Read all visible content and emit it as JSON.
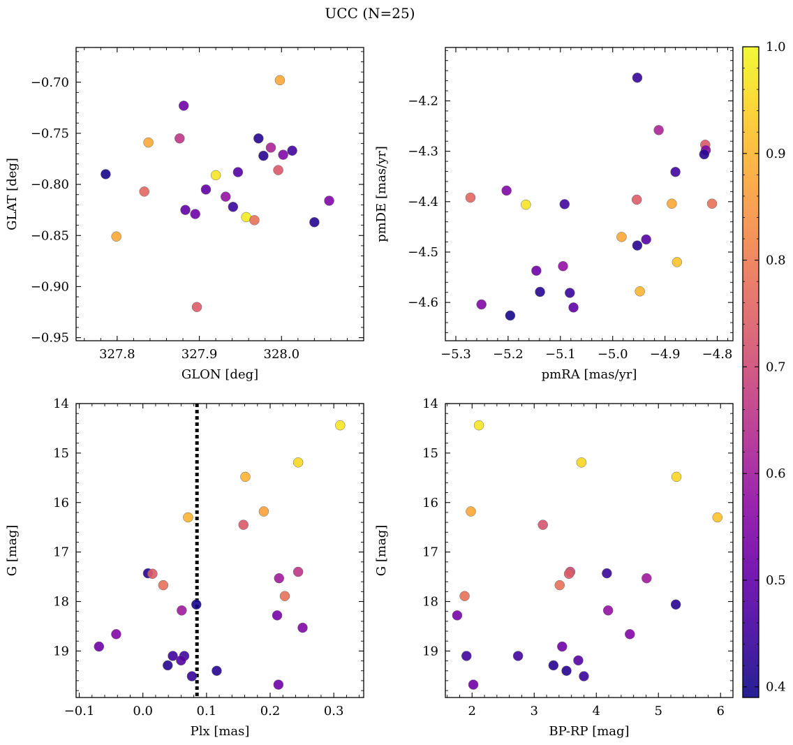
{
  "figure_title": "UCC (N=25)",
  "colormap": {
    "name": "plasma",
    "range": [
      0.39,
      1.0
    ],
    "ticks": [
      0.4,
      0.5,
      0.6,
      0.7,
      0.8,
      0.9,
      1.0
    ],
    "tick_labels": [
      "0.4",
      "0.5",
      "0.6",
      "0.7",
      "0.8",
      "0.9",
      "1.0"
    ]
  },
  "chart_data": [
    {
      "type": "scatter",
      "title": "",
      "xlabel": "GLON [deg]",
      "ylabel": "GLAT [deg]",
      "xlim": [
        327.75,
        328.1
      ],
      "ylim": [
        -0.953,
        -0.666
      ],
      "xticks": [
        327.8,
        327.9,
        328.0
      ],
      "xtick_labels": [
        "327.8",
        "327.9",
        "328.0"
      ],
      "yticks": [
        -0.7,
        -0.75,
        -0.8,
        -0.85,
        -0.9,
        -0.95
      ],
      "ytick_labels": [
        "−0.70",
        "−0.75",
        "−0.80",
        "−0.85",
        "−0.90",
        "−0.95"
      ],
      "invert_y": false,
      "points": [
        {
          "x": 327.998,
          "y": -0.698,
          "c": 0.88
        },
        {
          "x": 327.881,
          "y": -0.723,
          "c": 0.52
        },
        {
          "x": 327.838,
          "y": -0.759,
          "c": 0.88
        },
        {
          "x": 327.876,
          "y": -0.755,
          "c": 0.66
        },
        {
          "x": 327.972,
          "y": -0.755,
          "c": 0.42
        },
        {
          "x": 327.786,
          "y": -0.79,
          "c": 0.4
        },
        {
          "x": 327.92,
          "y": -0.791,
          "c": 0.97
        },
        {
          "x": 327.978,
          "y": -0.772,
          "c": 0.42
        },
        {
          "x": 327.987,
          "y": -0.764,
          "c": 0.62
        },
        {
          "x": 328.002,
          "y": -0.771,
          "c": 0.55
        },
        {
          "x": 328.013,
          "y": -0.767,
          "c": 0.45
        },
        {
          "x": 327.947,
          "y": -0.788,
          "c": 0.48
        },
        {
          "x": 327.996,
          "y": -0.786,
          "c": 0.73
        },
        {
          "x": 327.833,
          "y": -0.807,
          "c": 0.76
        },
        {
          "x": 327.908,
          "y": -0.805,
          "c": 0.5
        },
        {
          "x": 327.932,
          "y": -0.812,
          "c": 0.58
        },
        {
          "x": 327.941,
          "y": -0.822,
          "c": 0.44
        },
        {
          "x": 327.883,
          "y": -0.825,
          "c": 0.5
        },
        {
          "x": 327.895,
          "y": -0.829,
          "c": 0.52
        },
        {
          "x": 327.957,
          "y": -0.832,
          "c": 0.98
        },
        {
          "x": 327.967,
          "y": -0.835,
          "c": 0.78
        },
        {
          "x": 328.04,
          "y": -0.837,
          "c": 0.42
        },
        {
          "x": 328.058,
          "y": -0.816,
          "c": 0.55
        },
        {
          "x": 327.799,
          "y": -0.851,
          "c": 0.88
        },
        {
          "x": 327.897,
          "y": -0.92,
          "c": 0.74
        }
      ]
    },
    {
      "type": "scatter",
      "title": "",
      "xlabel": "pmRA [mas/yr]",
      "ylabel": "pmDE [mas/yr]",
      "xlim": [
        -5.32,
        -4.77
      ],
      "ylim": [
        -4.676,
        -4.094
      ],
      "xticks": [
        -5.3,
        -5.2,
        -5.1,
        -5.0,
        -4.9,
        -4.8
      ],
      "xtick_labels": [
        "−5.3",
        "−5.2",
        "−5.1",
        "−5.0",
        "−4.9",
        "−4.8"
      ],
      "yticks": [
        -4.2,
        -4.3,
        -4.4,
        -4.5,
        -4.6
      ],
      "ytick_labels": [
        "−4.2",
        "−4.3",
        "−4.4",
        "−4.5",
        "−4.6"
      ],
      "invert_y": false,
      "points": [
        {
          "x": -4.953,
          "y": -4.154,
          "c": 0.44
        },
        {
          "x": -4.912,
          "y": -4.258,
          "c": 0.62
        },
        {
          "x": -4.823,
          "y": -4.287,
          "c": 0.73
        },
        {
          "x": -4.822,
          "y": -4.298,
          "c": 0.55
        },
        {
          "x": -4.825,
          "y": -4.306,
          "c": 0.42
        },
        {
          "x": -4.88,
          "y": -4.341,
          "c": 0.45
        },
        {
          "x": -5.203,
          "y": -4.378,
          "c": 0.55
        },
        {
          "x": -5.272,
          "y": -4.392,
          "c": 0.76
        },
        {
          "x": -4.954,
          "y": -4.396,
          "c": 0.74
        },
        {
          "x": -4.887,
          "y": -4.404,
          "c": 0.88
        },
        {
          "x": -4.81,
          "y": -4.404,
          "c": 0.78
        },
        {
          "x": -5.166,
          "y": -4.406,
          "c": 0.97
        },
        {
          "x": -5.092,
          "y": -4.405,
          "c": 0.45
        },
        {
          "x": -4.983,
          "y": -4.47,
          "c": 0.88
        },
        {
          "x": -4.936,
          "y": -4.475,
          "c": 0.48
        },
        {
          "x": -4.953,
          "y": -4.487,
          "c": 0.42
        },
        {
          "x": -4.877,
          "y": -4.52,
          "c": 0.92
        },
        {
          "x": -5.095,
          "y": -4.528,
          "c": 0.58
        },
        {
          "x": -5.146,
          "y": -4.537,
          "c": 0.52
        },
        {
          "x": -5.139,
          "y": -4.579,
          "c": 0.42
        },
        {
          "x": -5.082,
          "y": -4.581,
          "c": 0.44
        },
        {
          "x": -4.948,
          "y": -4.578,
          "c": 0.9
        },
        {
          "x": -5.251,
          "y": -4.604,
          "c": 0.55
        },
        {
          "x": -5.075,
          "y": -4.61,
          "c": 0.5
        },
        {
          "x": -5.196,
          "y": -4.626,
          "c": 0.4
        }
      ]
    },
    {
      "type": "scatter",
      "title": "",
      "xlabel": "Plx [mas]",
      "ylabel": "G [mag]",
      "xlim": [
        -0.105,
        0.347
      ],
      "ylim": [
        14.0,
        19.94
      ],
      "xticks": [
        -0.1,
        0.0,
        0.1,
        0.2,
        0.3
      ],
      "xtick_labels": [
        "−0.1",
        "0.0",
        "0.1",
        "0.2",
        "0.3"
      ],
      "yticks": [
        14,
        15,
        16,
        17,
        18,
        19
      ],
      "ytick_labels": [
        "14",
        "15",
        "16",
        "17",
        "18",
        "19"
      ],
      "invert_y": true,
      "reference_line": {
        "x": 0.085,
        "style": "dotted"
      },
      "points": [
        {
          "x": 0.31,
          "y": 14.44,
          "c": 0.97
        },
        {
          "x": 0.244,
          "y": 15.19,
          "c": 0.95
        },
        {
          "x": 0.161,
          "y": 15.48,
          "c": 0.9
        },
        {
          "x": 0.071,
          "y": 16.3,
          "c": 0.9
        },
        {
          "x": 0.19,
          "y": 16.18,
          "c": 0.87
        },
        {
          "x": 0.158,
          "y": 16.45,
          "c": 0.73
        },
        {
          "x": 0.008,
          "y": 17.43,
          "c": 0.42
        },
        {
          "x": 0.015,
          "y": 17.44,
          "c": 0.74
        },
        {
          "x": 0.032,
          "y": 17.67,
          "c": 0.78
        },
        {
          "x": 0.214,
          "y": 17.53,
          "c": 0.6
        },
        {
          "x": 0.244,
          "y": 17.4,
          "c": 0.66
        },
        {
          "x": 0.223,
          "y": 17.89,
          "c": 0.78
        },
        {
          "x": 0.061,
          "y": 18.18,
          "c": 0.6
        },
        {
          "x": 0.084,
          "y": 18.06,
          "c": 0.4
        },
        {
          "x": 0.211,
          "y": 18.28,
          "c": 0.53
        },
        {
          "x": 0.251,
          "y": 18.53,
          "c": 0.55
        },
        {
          "x": -0.042,
          "y": 18.66,
          "c": 0.55
        },
        {
          "x": -0.069,
          "y": 18.91,
          "c": 0.52
        },
        {
          "x": 0.047,
          "y": 19.1,
          "c": 0.45
        },
        {
          "x": 0.065,
          "y": 19.1,
          "c": 0.45
        },
        {
          "x": 0.06,
          "y": 19.19,
          "c": 0.48
        },
        {
          "x": 0.039,
          "y": 19.29,
          "c": 0.42
        },
        {
          "x": 0.116,
          "y": 19.4,
          "c": 0.42
        },
        {
          "x": 0.077,
          "y": 19.51,
          "c": 0.44
        },
        {
          "x": 0.213,
          "y": 19.68,
          "c": 0.52
        }
      ]
    },
    {
      "type": "scatter",
      "title": "",
      "xlabel": "BP-RP [mag]",
      "ylabel": "G [mag]",
      "xlim": [
        1.57,
        6.2
      ],
      "ylim": [
        14.0,
        19.94
      ],
      "xticks": [
        2,
        3,
        4,
        5,
        6
      ],
      "xtick_labels": [
        "2",
        "3",
        "4",
        "5",
        "6"
      ],
      "yticks": [
        14,
        15,
        16,
        17,
        18,
        19
      ],
      "ytick_labels": [
        "14",
        "15",
        "16",
        "17",
        "18",
        "19"
      ],
      "invert_y": true,
      "points": [
        {
          "x": 2.11,
          "y": 14.44,
          "c": 0.97
        },
        {
          "x": 3.76,
          "y": 15.19,
          "c": 0.95
        },
        {
          "x": 5.29,
          "y": 15.48,
          "c": 0.95
        },
        {
          "x": 1.98,
          "y": 16.18,
          "c": 0.88
        },
        {
          "x": 5.95,
          "y": 16.3,
          "c": 0.92
        },
        {
          "x": 3.14,
          "y": 16.45,
          "c": 0.72
        },
        {
          "x": 3.58,
          "y": 17.4,
          "c": 0.7
        },
        {
          "x": 3.56,
          "y": 17.44,
          "c": 0.74
        },
        {
          "x": 4.17,
          "y": 17.43,
          "c": 0.44
        },
        {
          "x": 4.81,
          "y": 17.53,
          "c": 0.6
        },
        {
          "x": 3.41,
          "y": 17.67,
          "c": 0.78
        },
        {
          "x": 1.88,
          "y": 17.89,
          "c": 0.78
        },
        {
          "x": 5.28,
          "y": 18.06,
          "c": 0.42
        },
        {
          "x": 4.19,
          "y": 18.18,
          "c": 0.58
        },
        {
          "x": 1.76,
          "y": 18.28,
          "c": 0.53
        },
        {
          "x": 4.54,
          "y": 18.66,
          "c": 0.55
        },
        {
          "x": 3.45,
          "y": 18.91,
          "c": 0.52
        },
        {
          "x": 1.91,
          "y": 19.1,
          "c": 0.45
        },
        {
          "x": 2.74,
          "y": 19.1,
          "c": 0.45
        },
        {
          "x": 3.71,
          "y": 19.19,
          "c": 0.48
        },
        {
          "x": 3.31,
          "y": 19.29,
          "c": 0.42
        },
        {
          "x": 3.52,
          "y": 19.4,
          "c": 0.42
        },
        {
          "x": 3.8,
          "y": 19.51,
          "c": 0.44
        },
        {
          "x": 2.02,
          "y": 19.68,
          "c": 0.52
        }
      ]
    }
  ]
}
